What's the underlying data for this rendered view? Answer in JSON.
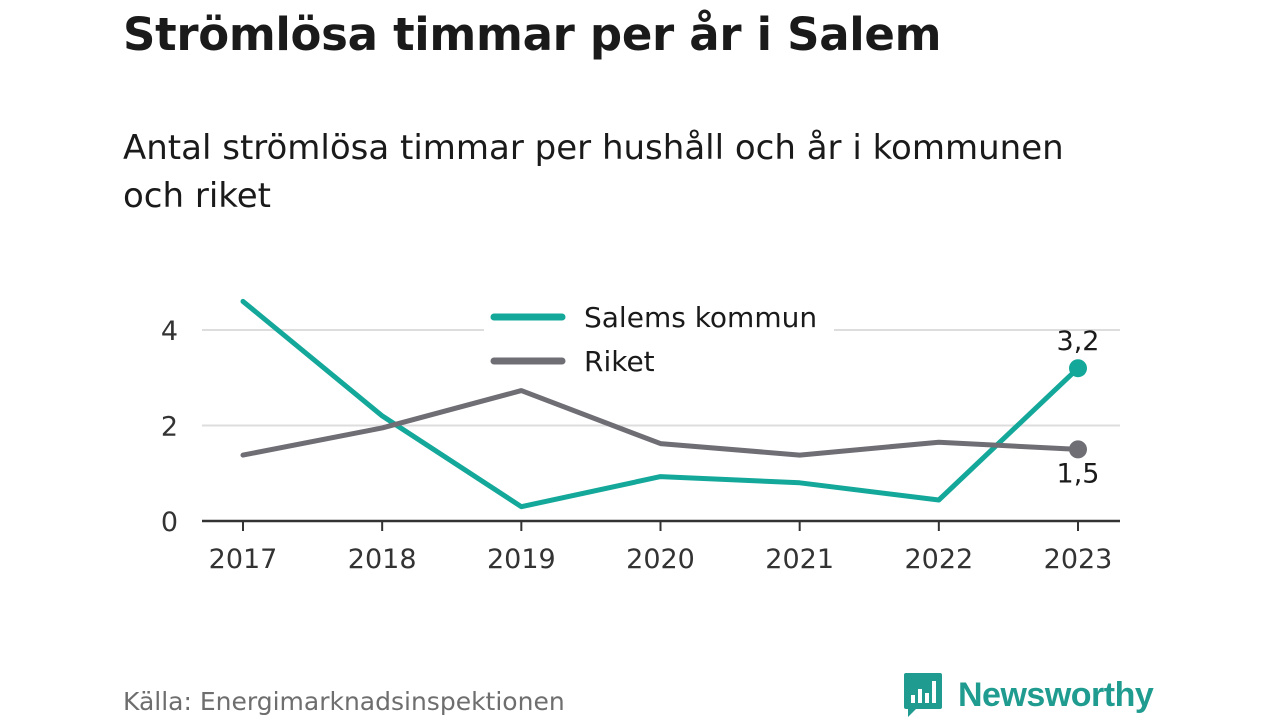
{
  "header": {
    "title": "Strömlösa timmar per år i Salem",
    "subtitle": "Antal strömlösa timmar per hushåll och år i kommunen och riket"
  },
  "footer": {
    "source": "Källa: Energimarknadsinspektionen",
    "brand": "Newsworthy"
  },
  "colors": {
    "salem": "#13a89a",
    "riket": "#6f6e75",
    "grid": "#dddddd",
    "axis": "#333333",
    "brand": "#1f9c8f"
  },
  "chart_data": {
    "type": "line",
    "x": [
      "2017",
      "2018",
      "2019",
      "2020",
      "2021",
      "2022",
      "2023"
    ],
    "yticks": [
      "0",
      "2",
      "4"
    ],
    "ylim": [
      0,
      4.6
    ],
    "grid": true,
    "legend_position": "top-center",
    "series": [
      {
        "name": "Salems kommun",
        "values": [
          4.6,
          2.2,
          0.3,
          0.93,
          0.8,
          0.44,
          3.2
        ],
        "end_label": "3,2"
      },
      {
        "name": "Riket",
        "values": [
          1.38,
          1.95,
          2.73,
          1.62,
          1.38,
          1.65,
          1.5
        ],
        "end_label": "1,5"
      }
    ]
  }
}
